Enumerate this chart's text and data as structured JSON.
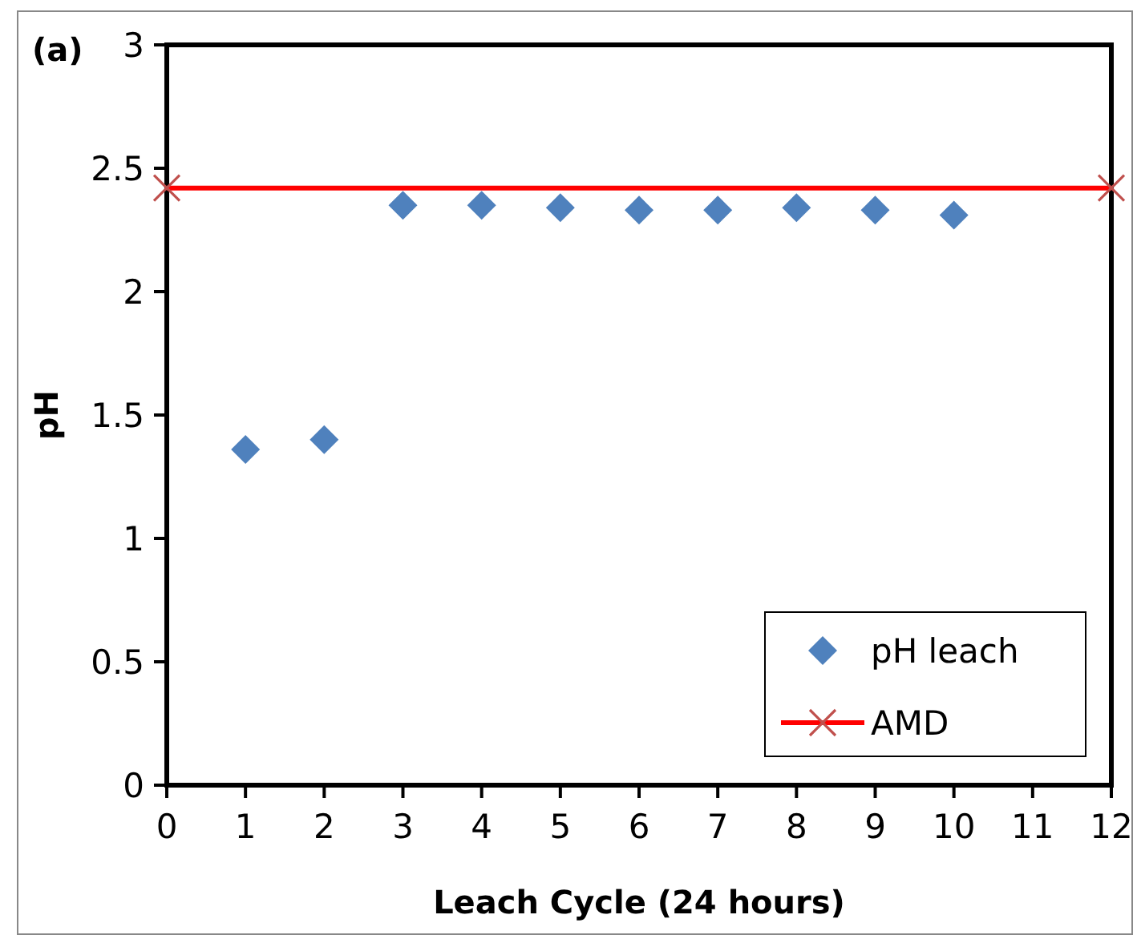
{
  "chart_data": {
    "type": "scatter",
    "xlabel": "Leach Cycle (24 hours)",
    "ylabel": "pH",
    "annotations": [
      "(a)"
    ],
    "xlim": [
      0,
      12
    ],
    "xticks": [
      0,
      1,
      2,
      3,
      4,
      5,
      6,
      7,
      8,
      9,
      10,
      11,
      12
    ],
    "ylim": [
      0,
      3
    ],
    "yticks": [
      0,
      0.5,
      1,
      1.5,
      2,
      2.5,
      3
    ],
    "grid": false,
    "legend": "bottom right",
    "series": [
      {
        "name": "pH leach",
        "marker": "diamond",
        "color": "#4f81bd",
        "x": [
          1,
          2,
          3,
          4,
          5,
          6,
          7,
          8,
          9,
          10
        ],
        "values": [
          1.36,
          1.4,
          2.35,
          2.35,
          2.34,
          2.33,
          2.33,
          2.34,
          2.33,
          2.31
        ]
      },
      {
        "name": "AMD",
        "type": "line",
        "marker": "cross",
        "line_style": "solid",
        "color": "#ff0000",
        "x": [
          0,
          12
        ],
        "values": [
          2.42,
          2.42
        ]
      }
    ]
  }
}
